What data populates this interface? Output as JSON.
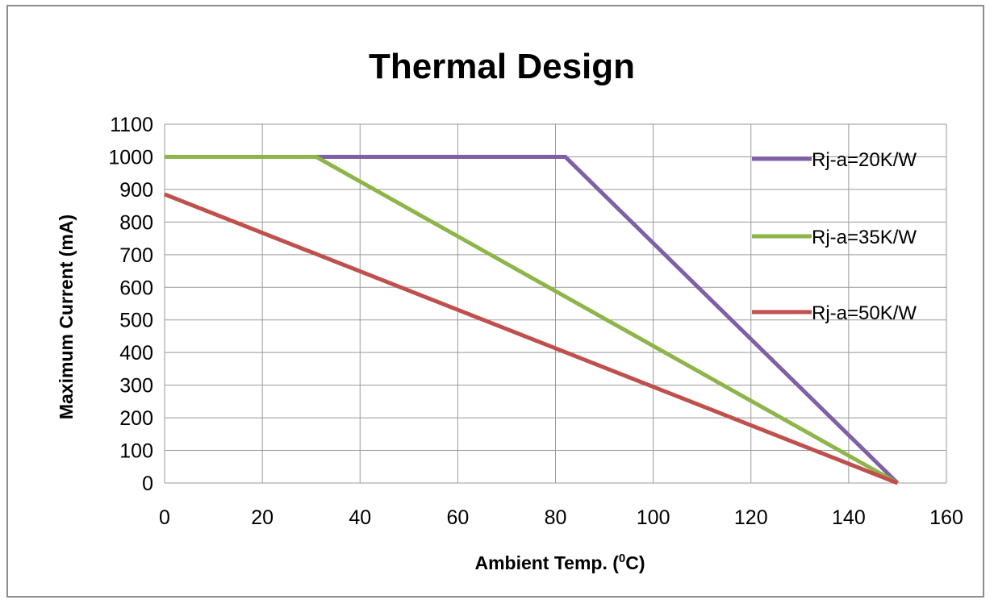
{
  "chart_data": {
    "type": "line",
    "title": "Thermal Design",
    "xlabel": "Ambient Temp. (",
    "xlabel_sup": "0",
    "xlabel_tail": "C)",
    "ylabel": "Maximum Current (mA)",
    "xlim": [
      0,
      160
    ],
    "ylim": [
      0,
      1100
    ],
    "xticks": [
      "0",
      "20",
      "40",
      "60",
      "80",
      "100",
      "120",
      "140",
      "160"
    ],
    "yticks": [
      "0",
      "100",
      "200",
      "300",
      "400",
      "500",
      "600",
      "700",
      "800",
      "900",
      "1000",
      "1100"
    ],
    "grid": true,
    "legend_position": "right",
    "series": [
      {
        "name": "Rj-a=20K/W",
        "color": "#7f5fa6",
        "x": [
          0,
          82,
          150
        ],
        "y": [
          1000,
          1000,
          0
        ]
      },
      {
        "name": "Rj-a=35K/W",
        "color": "#8db54a",
        "x": [
          0,
          31,
          150
        ],
        "y": [
          1000,
          1000,
          0
        ]
      },
      {
        "name": "Rj-a=50K/W",
        "color": "#c0504d",
        "x": [
          0,
          150
        ],
        "y": [
          885,
          0
        ]
      }
    ]
  }
}
